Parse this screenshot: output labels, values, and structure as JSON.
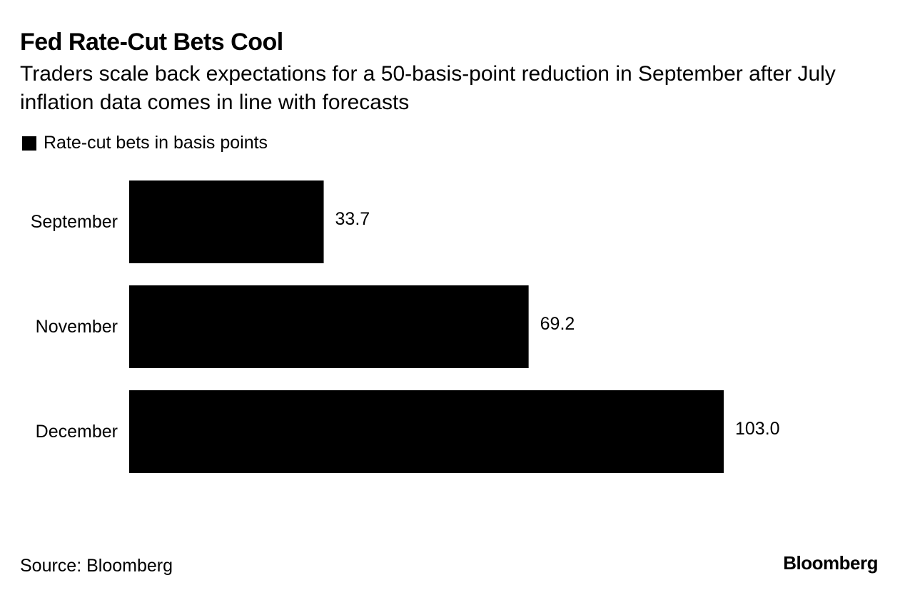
{
  "chart_data": {
    "type": "bar",
    "orientation": "horizontal",
    "title": "Fed Rate-Cut Bets Cool",
    "subtitle": "Traders scale back expectations for a 50-basis-point reduction in September after July inflation data comes in line with forecasts",
    "legend": [
      {
        "label": "Rate-cut bets in basis points",
        "color": "#000000"
      }
    ],
    "categories": [
      "September",
      "November",
      "December"
    ],
    "series": [
      {
        "name": "Rate-cut bets in basis points",
        "values": [
          33.7,
          69.2,
          103.0
        ],
        "labels": [
          "33.7",
          "69.2",
          "103.0"
        ],
        "color": "#000000"
      }
    ],
    "xlim": [
      0,
      103.0
    ],
    "grid": false,
    "legend_position": "top-left"
  },
  "footer": {
    "source": "Source: Bloomberg",
    "brand": "Bloomberg"
  }
}
